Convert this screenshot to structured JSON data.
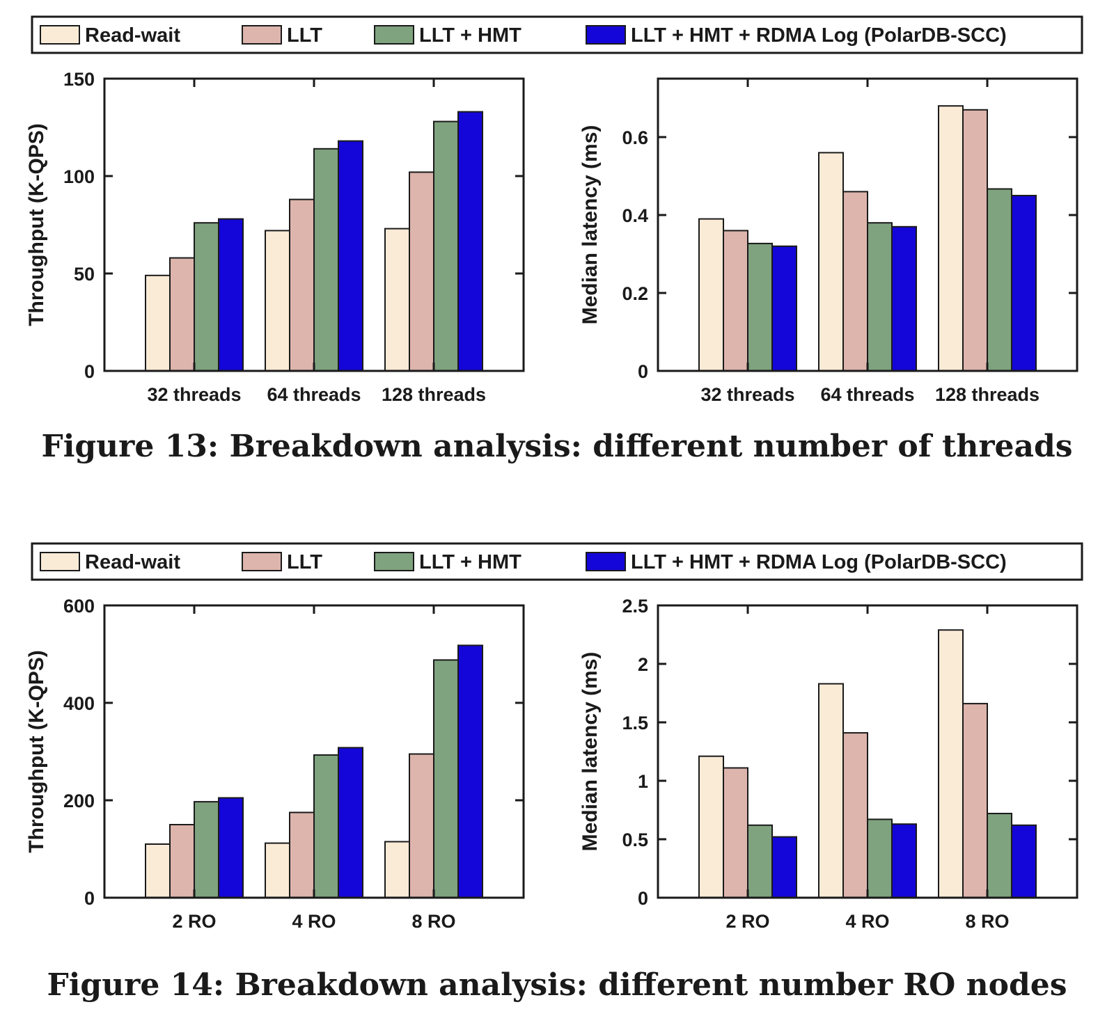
{
  "legend": {
    "items": [
      {
        "label": "Read-wait",
        "color": "#FAEBD7"
      },
      {
        "label": "LLT",
        "color": "#DDB5AD"
      },
      {
        "label": "LLT + HMT",
        "color": "#7FA27F"
      },
      {
        "label": "LLT + HMT + RDMA Log (PolarDB-SCC)",
        "color": "#1406D8"
      }
    ]
  },
  "captions": {
    "fig13": "Figure 13: Breakdown analysis: different number of threads",
    "fig14": "Figure 14: Breakdown analysis: different number RO nodes"
  },
  "chart_data": [
    {
      "type": "bar",
      "categories": [
        "32 threads",
        "64 threads",
        "128 threads"
      ],
      "ylabel": "Throughput (K-QPS)",
      "ylim": [
        0,
        150
      ],
      "yticks": [
        0,
        50,
        100,
        150
      ],
      "series": [
        {
          "name": "Read-wait",
          "values": [
            49,
            72,
            73
          ]
        },
        {
          "name": "LLT",
          "values": [
            58,
            88,
            102
          ]
        },
        {
          "name": "LLT + HMT",
          "values": [
            76,
            114,
            128
          ]
        },
        {
          "name": "LLT + HMT + RDMA Log (PolarDB-SCC)",
          "values": [
            78,
            118,
            133
          ]
        }
      ]
    },
    {
      "type": "bar",
      "categories": [
        "32 threads",
        "64 threads",
        "128 threads"
      ],
      "ylabel": "Median latency (ms)",
      "ylim": [
        0,
        0.75
      ],
      "yticks": [
        0,
        0.2,
        0.4,
        0.6
      ],
      "series": [
        {
          "name": "Read-wait",
          "values": [
            0.39,
            0.56,
            0.68
          ]
        },
        {
          "name": "LLT",
          "values": [
            0.36,
            0.46,
            0.67
          ]
        },
        {
          "name": "LLT + HMT",
          "values": [
            0.327,
            0.38,
            0.467
          ]
        },
        {
          "name": "LLT + HMT + RDMA Log (PolarDB-SCC)",
          "values": [
            0.32,
            0.37,
            0.45
          ]
        }
      ]
    },
    {
      "type": "bar",
      "categories": [
        "2 RO",
        "4 RO",
        "8 RO"
      ],
      "ylabel": "Throughput (K-QPS)",
      "ylim": [
        0,
        600
      ],
      "yticks": [
        0,
        200,
        400,
        600
      ],
      "series": [
        {
          "name": "Read-wait",
          "values": [
            110,
            112,
            115
          ]
        },
        {
          "name": "LLT",
          "values": [
            150,
            175,
            295
          ]
        },
        {
          "name": "LLT + HMT",
          "values": [
            197,
            293,
            488
          ]
        },
        {
          "name": "LLT + HMT + RDMA Log (PolarDB-SCC)",
          "values": [
            205,
            308,
            518
          ]
        }
      ]
    },
    {
      "type": "bar",
      "categories": [
        "2 RO",
        "4 RO",
        "8 RO"
      ],
      "ylabel": "Median latency (ms)",
      "ylim": [
        0,
        2.5
      ],
      "yticks": [
        0,
        0.5,
        1,
        1.5,
        2,
        2.5
      ],
      "series": [
        {
          "name": "Read-wait",
          "values": [
            1.21,
            1.83,
            2.29
          ]
        },
        {
          "name": "LLT",
          "values": [
            1.11,
            1.41,
            1.66
          ]
        },
        {
          "name": "LLT + HMT",
          "values": [
            0.62,
            0.67,
            0.72
          ]
        },
        {
          "name": "LLT + HMT + RDMA Log (PolarDB-SCC)",
          "values": [
            0.52,
            0.63,
            0.62
          ]
        }
      ]
    }
  ]
}
